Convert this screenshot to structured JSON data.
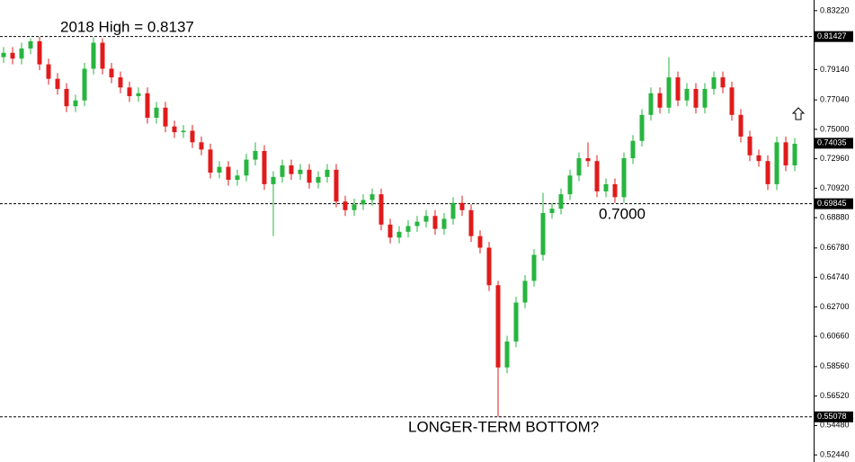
{
  "chart_data": {
    "type": "candlestick",
    "up_color": "#27b53f",
    "down_color": "#e01b1b",
    "ylim": [
      0.5195,
      0.8396
    ],
    "yticks": [
      {
        "value": 0.8322,
        "label": "0.83220"
      },
      {
        "value": 0.7914,
        "label": "0.79140"
      },
      {
        "value": 0.7704,
        "label": "0.77040"
      },
      {
        "value": 0.75,
        "label": "0.75000"
      },
      {
        "value": 0.7296,
        "label": "0.72960"
      },
      {
        "value": 0.7092,
        "label": "0.70920"
      },
      {
        "value": 0.6888,
        "label": "0.68880"
      },
      {
        "value": 0.6678,
        "label": "0.66780"
      },
      {
        "value": 0.6474,
        "label": "0.64740"
      },
      {
        "value": 0.627,
        "label": "0.62700"
      },
      {
        "value": 0.6066,
        "label": "0.60660"
      },
      {
        "value": 0.5856,
        "label": "0.58560"
      },
      {
        "value": 0.5652,
        "label": "0.56520"
      },
      {
        "value": 0.5448,
        "label": "0.54480"
      },
      {
        "value": 0.5244,
        "label": "0.52440"
      }
    ],
    "levels": [
      {
        "value": 0.81427,
        "dashed": true
      },
      {
        "value": 0.69845,
        "dashed": true
      },
      {
        "value": 0.55078,
        "dashed": true
      },
      {
        "value": 0.74035,
        "dashed": false
      }
    ],
    "annotations": [
      {
        "text": "2018 High = 0.8137"
      },
      {
        "text": "0.7000"
      },
      {
        "text": "LONGER-TERM BOTTOM?"
      }
    ],
    "open": [
      0.8,
      0.803,
      0.799,
      0.806,
      0.811,
      0.795,
      0.785,
      0.778,
      0.766,
      0.77,
      0.792,
      0.81,
      0.792,
      0.786,
      0.779,
      0.773,
      0.775,
      0.758,
      0.765,
      0.752,
      0.748,
      0.749,
      0.741,
      0.736,
      0.72,
      0.724,
      0.715,
      0.718,
      0.729,
      0.735,
      0.712,
      0.717,
      0.725,
      0.719,
      0.722,
      0.713,
      0.717,
      0.722,
      0.7,
      0.694,
      0.698,
      0.701,
      0.705,
      0.684,
      0.675,
      0.679,
      0.683,
      0.686,
      0.69,
      0.681,
      0.688,
      0.699,
      0.694,
      0.676,
      0.668,
      0.642,
      0.585,
      0.603,
      0.63,
      0.645,
      0.663,
      0.692,
      0.695,
      0.705,
      0.718,
      0.73,
      0.728,
      0.707,
      0.712,
      0.703,
      0.73,
      0.742,
      0.76,
      0.775,
      0.765,
      0.786,
      0.77,
      0.778,
      0.765,
      0.778,
      0.786,
      0.779,
      0.76,
      0.745,
      0.732,
      0.728,
      0.712,
      0.741,
      0.725
    ],
    "high": [
      0.807,
      0.807,
      0.81,
      0.813,
      0.814,
      0.799,
      0.789,
      0.782,
      0.774,
      0.796,
      0.8137,
      0.813,
      0.796,
      0.79,
      0.783,
      0.779,
      0.779,
      0.769,
      0.769,
      0.756,
      0.753,
      0.753,
      0.745,
      0.74,
      0.728,
      0.728,
      0.722,
      0.733,
      0.741,
      0.739,
      0.721,
      0.729,
      0.729,
      0.726,
      0.726,
      0.721,
      0.726,
      0.726,
      0.704,
      0.702,
      0.705,
      0.709,
      0.709,
      0.688,
      0.683,
      0.687,
      0.69,
      0.694,
      0.694,
      0.692,
      0.703,
      0.704,
      0.698,
      0.68,
      0.672,
      0.645,
      0.607,
      0.634,
      0.649,
      0.667,
      0.706,
      0.699,
      0.709,
      0.722,
      0.734,
      0.741,
      0.732,
      0.716,
      0.716,
      0.734,
      0.746,
      0.764,
      0.779,
      0.779,
      0.8,
      0.79,
      0.782,
      0.782,
      0.782,
      0.79,
      0.79,
      0.783,
      0.764,
      0.749,
      0.736,
      0.732,
      0.745,
      0.745,
      0.744
    ],
    "low": [
      0.796,
      0.795,
      0.795,
      0.802,
      0.791,
      0.781,
      0.774,
      0.762,
      0.762,
      0.766,
      0.788,
      0.788,
      0.782,
      0.775,
      0.769,
      0.769,
      0.754,
      0.754,
      0.748,
      0.744,
      0.744,
      0.737,
      0.732,
      0.716,
      0.716,
      0.711,
      0.711,
      0.714,
      0.725,
      0.708,
      0.676,
      0.713,
      0.715,
      0.715,
      0.709,
      0.709,
      0.713,
      0.696,
      0.69,
      0.69,
      0.694,
      0.697,
      0.68,
      0.671,
      0.671,
      0.675,
      0.679,
      0.682,
      0.677,
      0.677,
      0.684,
      0.69,
      0.672,
      0.664,
      0.638,
      0.5508,
      0.581,
      0.599,
      0.626,
      0.641,
      0.659,
      0.688,
      0.691,
      0.701,
      0.714,
      0.724,
      0.703,
      0.703,
      0.699,
      0.699,
      0.726,
      0.738,
      0.756,
      0.761,
      0.761,
      0.766,
      0.766,
      0.761,
      0.761,
      0.774,
      0.775,
      0.756,
      0.741,
      0.728,
      0.724,
      0.708,
      0.708,
      0.721,
      0.721
    ],
    "close": [
      0.803,
      0.799,
      0.806,
      0.811,
      0.795,
      0.785,
      0.778,
      0.766,
      0.77,
      0.792,
      0.81,
      0.792,
      0.786,
      0.779,
      0.773,
      0.775,
      0.758,
      0.765,
      0.752,
      0.748,
      0.749,
      0.741,
      0.736,
      0.72,
      0.724,
      0.715,
      0.718,
      0.729,
      0.735,
      0.712,
      0.717,
      0.725,
      0.719,
      0.722,
      0.713,
      0.717,
      0.722,
      0.7,
      0.694,
      0.698,
      0.701,
      0.705,
      0.684,
      0.675,
      0.679,
      0.683,
      0.686,
      0.69,
      0.681,
      0.688,
      0.699,
      0.694,
      0.676,
      0.668,
      0.642,
      0.585,
      0.603,
      0.63,
      0.645,
      0.663,
      0.692,
      0.695,
      0.705,
      0.718,
      0.73,
      0.728,
      0.707,
      0.712,
      0.703,
      0.73,
      0.742,
      0.76,
      0.775,
      0.765,
      0.786,
      0.77,
      0.778,
      0.765,
      0.778,
      0.786,
      0.779,
      0.76,
      0.745,
      0.732,
      0.728,
      0.712,
      0.741,
      0.725,
      0.74
    ]
  }
}
